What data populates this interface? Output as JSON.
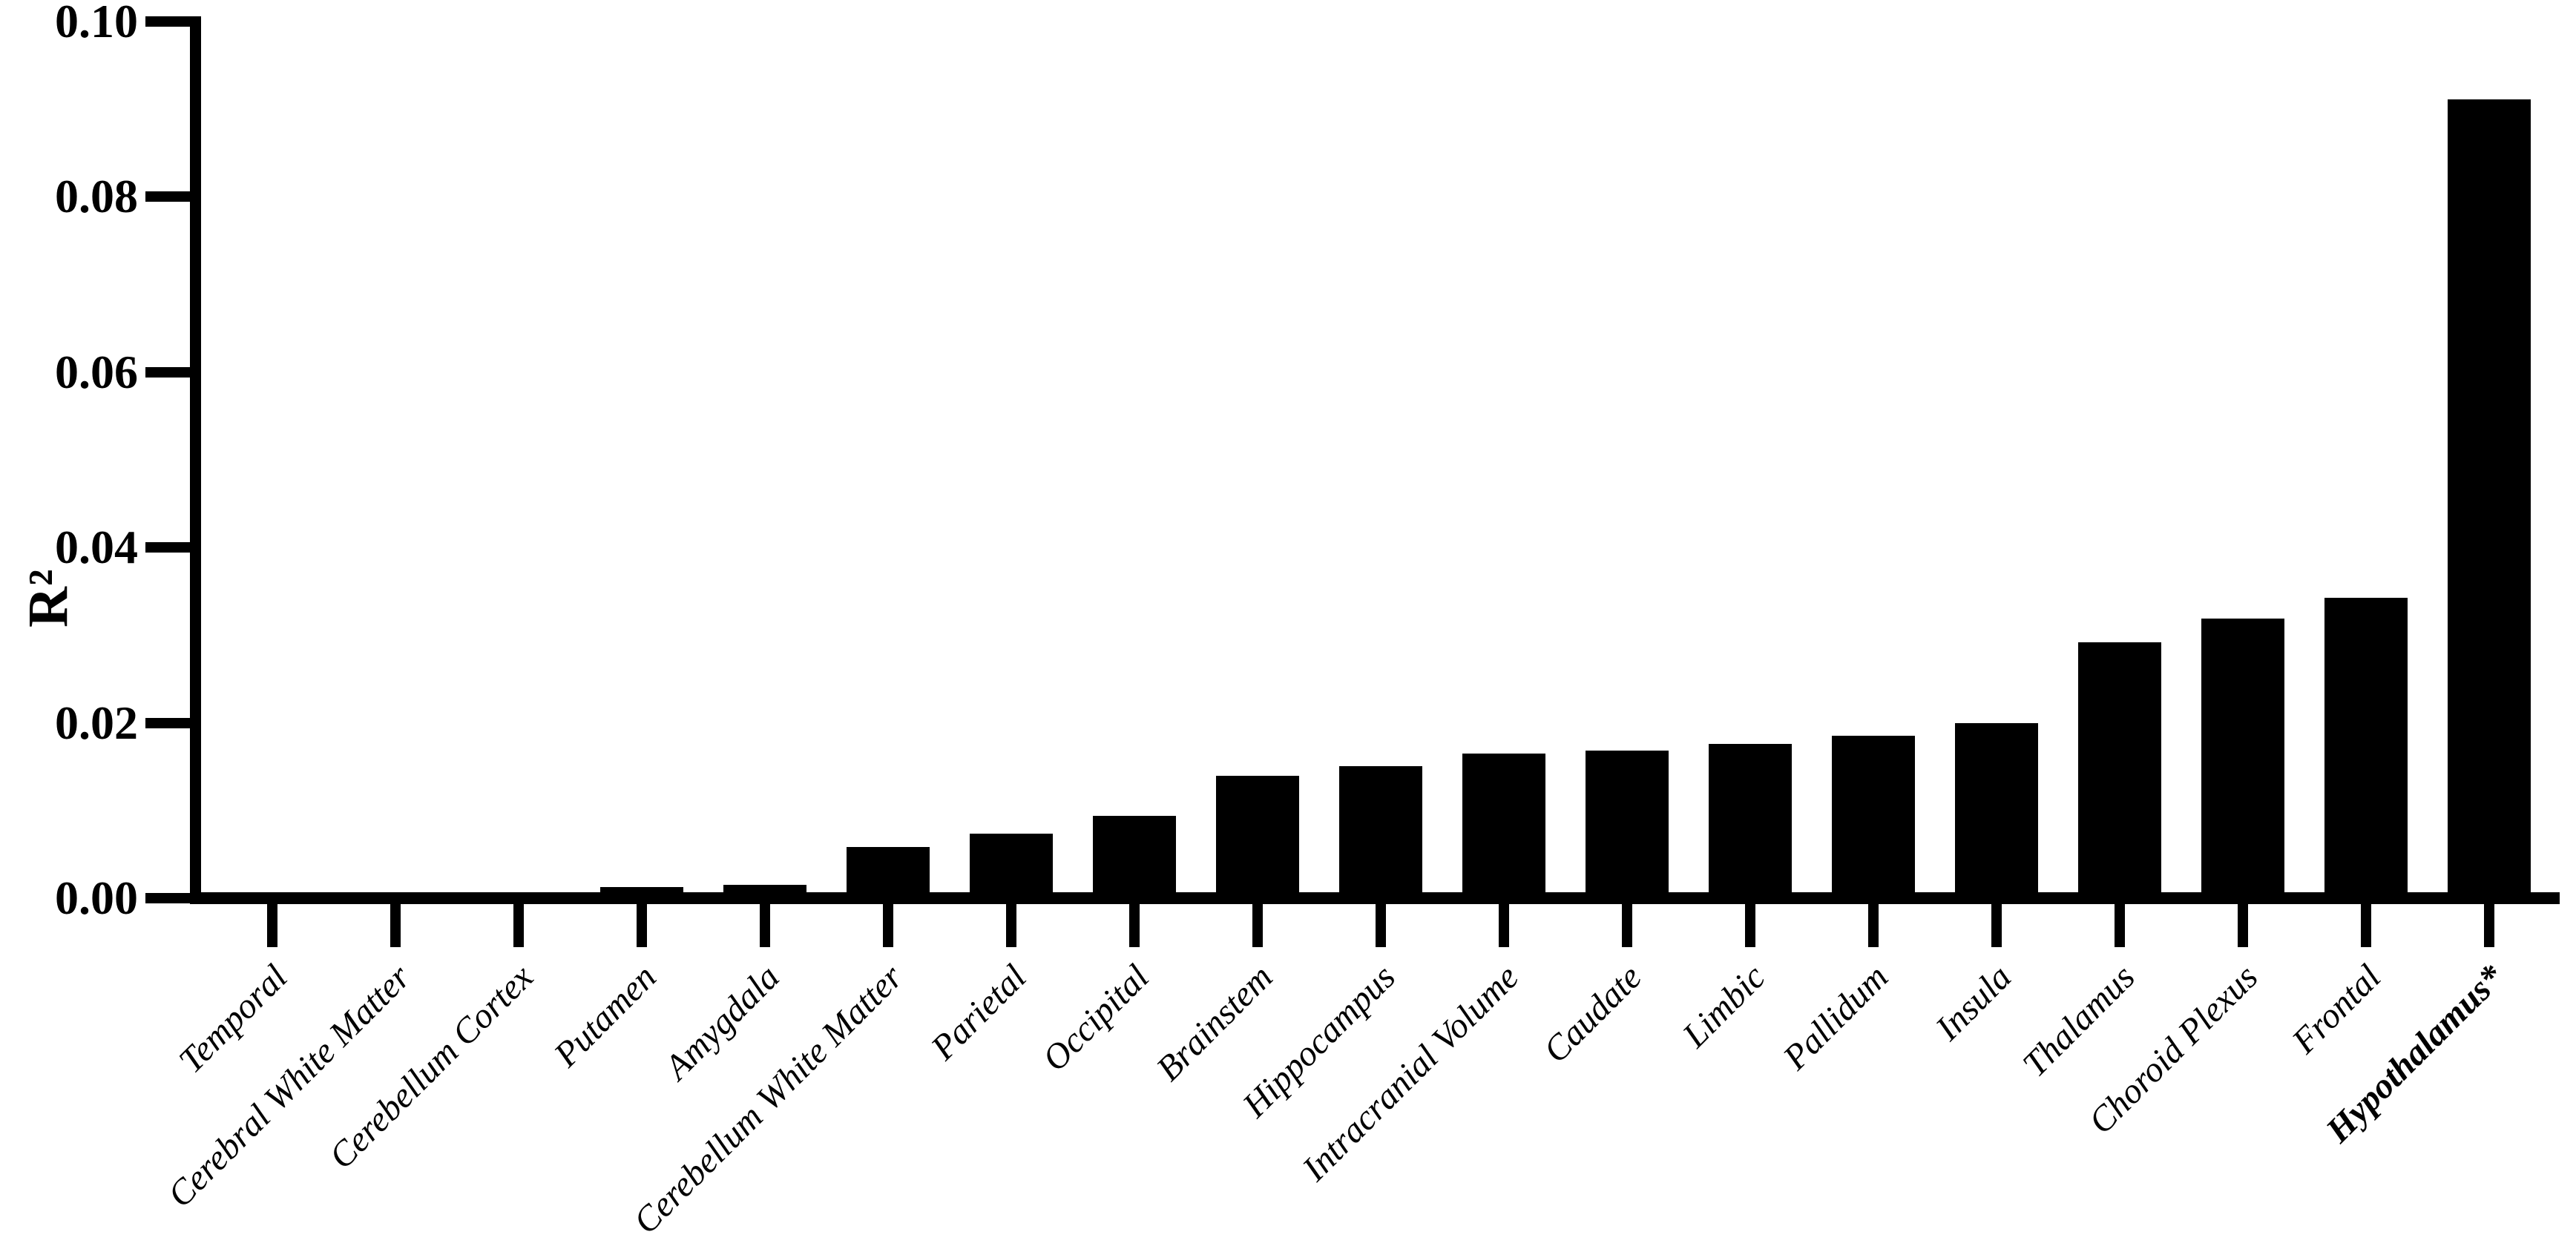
{
  "chart_data": {
    "type": "bar",
    "title": "",
    "ylabel": "R²",
    "xlabel": "",
    "ylim": [
      0,
      0.1
    ],
    "ytick_labels": [
      "0.00",
      "0.02",
      "0.04",
      "0.06",
      "0.08",
      "0.10"
    ],
    "ytick_values": [
      0.0,
      0.02,
      0.04,
      0.06,
      0.08,
      0.1
    ],
    "grid": "off",
    "legend": "none",
    "bar_color": "#000000",
    "background_color": "#ffffff",
    "categories": [
      "Temporal",
      "Cerebral White Matter",
      "Cerebellum Cortex",
      "Putamen",
      "Amygdala",
      "Cerebellum White Matter",
      "Parietal",
      "Occipital",
      "Brainstem",
      "Hippocampus",
      "Intracranial Volume",
      "Caudate",
      "Limbic",
      "Pallidum",
      "Insula",
      "Thalamus",
      "Choroid Plexus",
      "Frontal",
      "Hypothalamus*"
    ],
    "values": [
      0.0002,
      0.0002,
      0.0003,
      0.0013,
      0.0015,
      0.0058,
      0.0074,
      0.0094,
      0.014,
      0.0151,
      0.0165,
      0.0168,
      0.0176,
      0.0185,
      0.02,
      0.0292,
      0.0319,
      0.0343,
      0.0911
    ],
    "emphasized_category": "Hypothalamus*"
  }
}
